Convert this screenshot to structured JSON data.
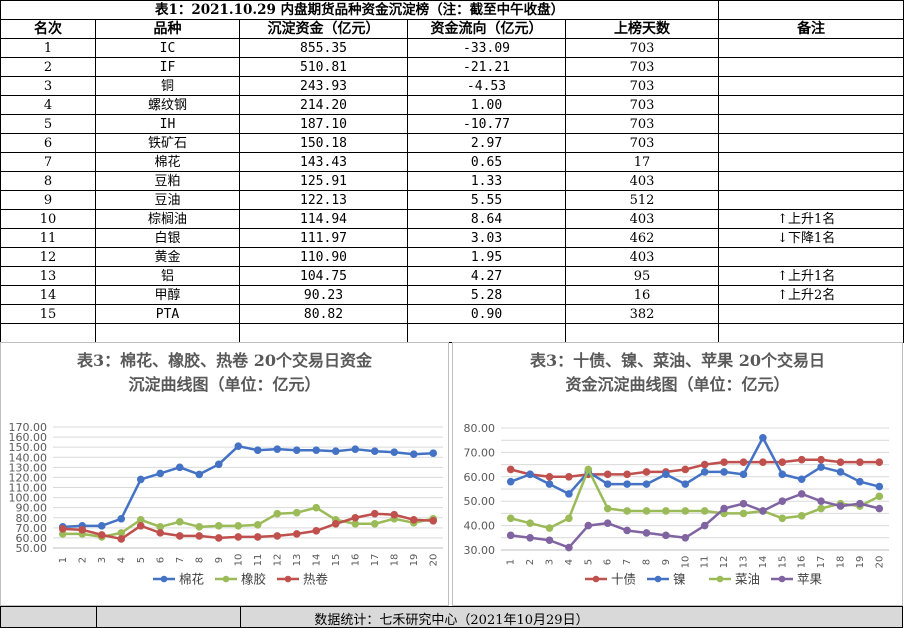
{
  "table": {
    "title": "表1：2021.10.29 内盘期货品种资金沉淀榜（注：截至中午收盘）",
    "headers": [
      "名次",
      "品种",
      "沉淀资金（亿元）",
      "资金流向（亿元）",
      "上榜天数",
      "备注"
    ],
    "rows": [
      {
        "rank": "1",
        "name": "IC",
        "fund": "855.35",
        "flow": "-33.09",
        "days": "703",
        "note": ""
      },
      {
        "rank": "2",
        "name": "IF",
        "fund": "510.81",
        "flow": "-21.21",
        "days": "703",
        "note": ""
      },
      {
        "rank": "3",
        "name": "铜",
        "fund": "243.93",
        "flow": "-4.53",
        "days": "703",
        "note": ""
      },
      {
        "rank": "4",
        "name": "螺纹钢",
        "fund": "214.20",
        "flow": "1.00",
        "days": "703",
        "note": ""
      },
      {
        "rank": "5",
        "name": "IH",
        "fund": "187.10",
        "flow": "-10.77",
        "days": "703",
        "note": ""
      },
      {
        "rank": "6",
        "name": "铁矿石",
        "fund": "150.18",
        "flow": "2.97",
        "days": "703",
        "note": ""
      },
      {
        "rank": "7",
        "name": "棉花",
        "fund": "143.43",
        "flow": "0.65",
        "days": "17",
        "note": ""
      },
      {
        "rank": "8",
        "name": "豆粕",
        "fund": "125.91",
        "flow": "1.33",
        "days": "403",
        "note": ""
      },
      {
        "rank": "9",
        "name": "豆油",
        "fund": "122.13",
        "flow": "5.55",
        "days": "512",
        "note": ""
      },
      {
        "rank": "10",
        "name": "棕榈油",
        "fund": "114.94",
        "flow": "8.64",
        "days": "403",
        "note": "↑上升1名"
      },
      {
        "rank": "11",
        "name": "白银",
        "fund": "111.97",
        "flow": "3.03",
        "days": "462",
        "note": "↓下降1名"
      },
      {
        "rank": "12",
        "name": "黄金",
        "fund": "110.90",
        "flow": "1.95",
        "days": "403",
        "note": ""
      },
      {
        "rank": "13",
        "name": "铝",
        "fund": "104.75",
        "flow": "4.27",
        "days": "95",
        "note": "↑上升1名"
      },
      {
        "rank": "14",
        "name": "甲醇",
        "fund": "90.23",
        "flow": "5.28",
        "days": "16",
        "note": "↑上升2名"
      },
      {
        "rank": "15",
        "name": "PTA",
        "fund": "80.82",
        "flow": "0.90",
        "days": "382",
        "note": ""
      }
    ]
  },
  "chart_data": [
    {
      "type": "line",
      "title": "表3：棉花、橡胶、热卷 20个交易日资金沉淀曲线图（单位：亿元）",
      "title_lines": [
        "表3：棉花、橡胶、热卷 20个交易日资金",
        "沉淀曲线图（单位：亿元）"
      ],
      "x": [
        "1",
        "2",
        "3",
        "4",
        "5",
        "6",
        "7",
        "8",
        "9",
        "10",
        "11",
        "12",
        "13",
        "14",
        "15",
        "16",
        "17",
        "18",
        "19",
        "20"
      ],
      "y_ticks": [
        "50.00",
        "60.00",
        "70.00",
        "80.00",
        "90.00",
        "100.00",
        "110.00",
        "120.00",
        "130.00",
        "140.00",
        "150.00",
        "160.00",
        "170.00"
      ],
      "ylim": [
        50,
        170
      ],
      "tick_step": 10,
      "label_every": 2,
      "legend_position": "bottom",
      "series": [
        {
          "name": "棉花",
          "color": "#4472c4",
          "values": [
            71,
            72,
            72,
            79,
            118,
            124,
            130,
            123,
            133,
            151,
            147,
            148,
            147,
            147,
            146,
            148,
            146,
            145,
            143,
            144
          ]
        },
        {
          "name": "橡胶",
          "color": "#9bbb59",
          "values": [
            64,
            64,
            61,
            65,
            78,
            71,
            76,
            71,
            72,
            72,
            73,
            84,
            85,
            90,
            78,
            74,
            74,
            79,
            75,
            79
          ]
        },
        {
          "name": "热卷",
          "color": "#c0504d",
          "values": [
            69,
            68,
            63,
            59,
            72,
            65,
            62,
            62,
            60,
            61,
            61,
            62,
            64,
            67,
            74,
            80,
            84,
            83,
            78,
            77
          ]
        }
      ]
    },
    {
      "type": "line",
      "title": "表3：十债、镍、菜油、苹果 20个交易日资金沉淀曲线图（单位：亿元）",
      "title_lines": [
        "表3：十债、镍、菜油、苹果 20个交易日",
        "资金沉淀曲线图（单位：亿元）"
      ],
      "x": [
        "1",
        "2",
        "3",
        "4",
        "5",
        "6",
        "7",
        "8",
        "9",
        "10",
        "11",
        "12",
        "13",
        "14",
        "15",
        "16",
        "17",
        "18",
        "19",
        "20"
      ],
      "y_ticks": [
        "30.00",
        "40.00",
        "50.00",
        "60.00",
        "70.00",
        "80.00"
      ],
      "ylim": [
        30,
        80
      ],
      "tick_step": 5,
      "label_every": 2,
      "legend_position": "bottom",
      "series": [
        {
          "name": "十债",
          "color": "#c0504d",
          "values": [
            63,
            61,
            60,
            60,
            61,
            61,
            61,
            62,
            62,
            63,
            65,
            66,
            66,
            66,
            66,
            67,
            67,
            66,
            66,
            66
          ]
        },
        {
          "name": "镍",
          "color": "#4472c4",
          "values": [
            58,
            61,
            57,
            53,
            62,
            57,
            57,
            57,
            61,
            57,
            62,
            62,
            61,
            76,
            61,
            59,
            64,
            62,
            58,
            56
          ]
        },
        {
          "name": "菜油",
          "color": "#9bbb59",
          "values": [
            43,
            41,
            39,
            43,
            63,
            47,
            46,
            46,
            46,
            46,
            46,
            45,
            45,
            46,
            43,
            44,
            47,
            49,
            48,
            52
          ]
        },
        {
          "name": "苹果",
          "color": "#8064a2",
          "values": [
            36,
            35,
            34,
            31,
            40,
            41,
            38,
            37,
            36,
            35,
            40,
            47,
            49,
            46,
            50,
            53,
            50,
            48,
            49,
            47
          ]
        }
      ]
    }
  ],
  "footer": {
    "text": "数据统计：七禾研究中心（2021年10月29日）"
  }
}
